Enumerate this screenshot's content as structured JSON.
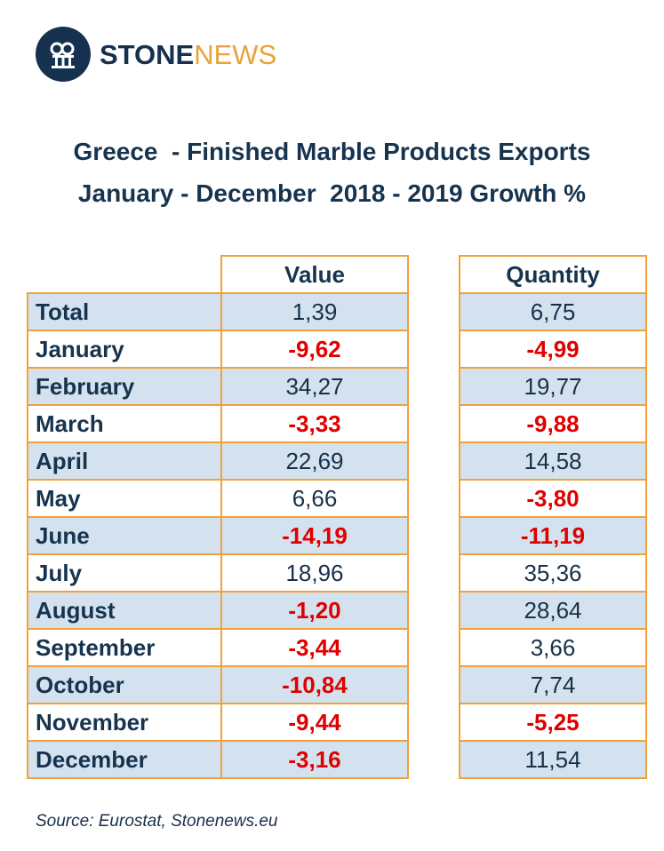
{
  "brand": {
    "part1": "STONE",
    "part2": "NEWS"
  },
  "title_line1": "Greece  - Finished Marble Products Exports",
  "title_line2": "January - December  2018 - 2019 Growth %",
  "chart_data": {
    "type": "table",
    "columns": [
      "Value",
      "Quantity"
    ],
    "rows": [
      {
        "label": "Total",
        "value": "1,39",
        "quantity": "6,75",
        "value_neg": false,
        "quantity_neg": false
      },
      {
        "label": "January",
        "value": "-9,62",
        "quantity": "-4,99",
        "value_neg": true,
        "quantity_neg": true
      },
      {
        "label": "February",
        "value": "34,27",
        "quantity": "19,77",
        "value_neg": false,
        "quantity_neg": false
      },
      {
        "label": "March",
        "value": "-3,33",
        "quantity": "-9,88",
        "value_neg": true,
        "quantity_neg": true
      },
      {
        "label": "April",
        "value": "22,69",
        "quantity": "14,58",
        "value_neg": false,
        "quantity_neg": false
      },
      {
        "label": "May",
        "value": "6,66",
        "quantity": "-3,80",
        "value_neg": false,
        "quantity_neg": true
      },
      {
        "label": "June",
        "value": "-14,19",
        "quantity": "-11,19",
        "value_neg": true,
        "quantity_neg": true
      },
      {
        "label": "July",
        "value": "18,96",
        "quantity": "35,36",
        "value_neg": false,
        "quantity_neg": false
      },
      {
        "label": "August",
        "value": "-1,20",
        "quantity": "28,64",
        "value_neg": true,
        "quantity_neg": false
      },
      {
        "label": "September",
        "value": "-3,44",
        "quantity": "3,66",
        "value_neg": true,
        "quantity_neg": false
      },
      {
        "label": "October",
        "value": "-10,84",
        "quantity": "7,74",
        "value_neg": true,
        "quantity_neg": false
      },
      {
        "label": "November",
        "value": "-9,44",
        "quantity": "-5,25",
        "value_neg": true,
        "quantity_neg": true
      },
      {
        "label": "December",
        "value": "-3,16",
        "quantity": "11,54",
        "value_neg": true,
        "quantity_neg": false
      }
    ]
  },
  "source": "Source: Eurostat, Stonenews.eu",
  "colors": {
    "border": "#f0a23a",
    "shade": "#d4e2ef",
    "negative": "#e00000",
    "navy": "#17344f"
  }
}
